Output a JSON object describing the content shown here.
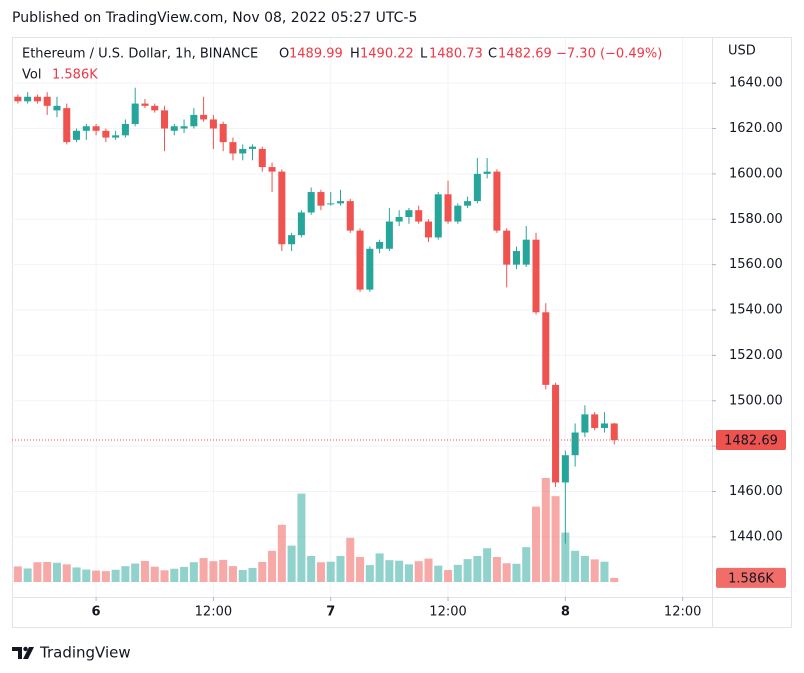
{
  "published": "Published on TradingView.com, Nov 08, 2022 05:27 UTC-5",
  "footer": {
    "brand": "TradingView"
  },
  "chart_data": {
    "type": "candlestick",
    "title": "Ethereum / U.S. Dollar, 1h, BINANCE",
    "ohlc_labels": [
      "O",
      "H",
      "L",
      "C"
    ],
    "change": "−7.30 (−0.49%)",
    "volume_title": "Vol",
    "volume_label": "1.586K",
    "currency_label": "USD",
    "up_color": "#26a69a",
    "down_color": "#ef5350",
    "x": [
      -8,
      -7,
      -6,
      -5,
      -4,
      -3,
      -2,
      -1,
      0,
      1,
      2,
      3,
      4,
      5,
      6,
      7,
      8,
      9,
      10,
      11,
      12,
      13,
      14,
      15,
      16,
      17,
      18,
      19,
      20,
      21,
      22,
      23,
      24,
      25,
      26,
      27,
      28,
      29,
      30,
      31,
      32,
      33,
      34,
      35,
      36,
      37,
      38,
      39,
      40,
      41,
      42,
      43,
      44,
      45,
      46,
      47,
      48,
      49,
      50,
      51,
      52,
      53
    ],
    "open": [
      1634,
      1632,
      1634,
      1634,
      1628,
      1629,
      1615,
      1619,
      1621,
      1619,
      1616,
      1617,
      1622,
      1631,
      1630,
      1628,
      1619,
      1620,
      1621,
      1626,
      1624,
      1622,
      1614,
      1609,
      1611,
      1611,
      1603,
      1601,
      1569,
      1573,
      1583,
      1592,
      1587,
      1587,
      1588,
      1575,
      1549,
      1567,
      1567,
      1579,
      1581,
      1584,
      1579,
      1572,
      1591,
      1579,
      1586,
      1588,
      1600,
      1601,
      1575,
      1560,
      1560,
      1571,
      1539,
      1507,
      1464,
      1476,
      1486,
      1494,
      1488,
      1489.99
    ],
    "high": [
      1635,
      1636,
      1635,
      1636,
      1634,
      1631,
      1620,
      1622,
      1622,
      1620,
      1619,
      1624,
      1638,
      1633,
      1631,
      1630,
      1622,
      1624,
      1629,
      1634,
      1626,
      1623,
      1616,
      1613,
      1613,
      1612,
      1605,
      1602,
      1574,
      1584,
      1594,
      1593,
      1592,
      1593,
      1589,
      1576,
      1568,
      1571,
      1585,
      1584,
      1585,
      1586,
      1580,
      1592,
      1597,
      1587,
      1590,
      1607,
      1607,
      1602,
      1576,
      1568,
      1577,
      1574,
      1543,
      1508,
      1478,
      1490,
      1498,
      1495,
      1495,
      1490.22
    ],
    "low": [
      1631,
      1631,
      1631,
      1626,
      1625,
      1613,
      1614,
      1615,
      1617,
      1614,
      1615,
      1616,
      1621,
      1629,
      1627,
      1610,
      1617,
      1618,
      1620,
      1623,
      1611,
      1610,
      1606,
      1606,
      1606,
      1601,
      1592,
      1566,
      1566,
      1572,
      1582,
      1584,
      1586,
      1586,
      1574,
      1548,
      1548,
      1565,
      1566,
      1577,
      1578,
      1578,
      1570,
      1571,
      1578,
      1578,
      1585,
      1587,
      1598,
      1574,
      1550,
      1558,
      1559,
      1538,
      1505,
      1462,
      1437,
      1471,
      1484,
      1487,
      1486,
      1480.73
    ],
    "close": [
      1632,
      1634,
      1632,
      1630,
      1630,
      1614,
      1619,
      1621,
      1619,
      1616,
      1617,
      1622,
      1631,
      1630,
      1628,
      1620,
      1621,
      1621,
      1626,
      1624,
      1620,
      1614,
      1609,
      1611,
      1612,
      1603,
      1601,
      1569,
      1573,
      1583,
      1592,
      1586,
      1587,
      1588,
      1575,
      1549,
      1567,
      1570,
      1579,
      1581,
      1584,
      1579,
      1572,
      1591,
      1579,
      1586,
      1588,
      1600,
      1601,
      1575,
      1560,
      1566,
      1571,
      1539,
      1507,
      1464,
      1476,
      1486,
      1494,
      1488,
      1490,
      1482.69
    ],
    "volume": [
      6000,
      5200,
      7600,
      7700,
      7400,
      6800,
      5600,
      4800,
      4400,
      4200,
      4700,
      6100,
      7100,
      8100,
      5900,
      4500,
      5100,
      5800,
      7600,
      9200,
      8000,
      8500,
      6100,
      4600,
      5400,
      7700,
      12000,
      22000,
      14000,
      34000,
      10000,
      7600,
      7800,
      10000,
      17000,
      9600,
      6500,
      11000,
      8400,
      8200,
      6800,
      8000,
      9000,
      6300,
      4600,
      6600,
      8800,
      10000,
      13000,
      9600,
      7200,
      7000,
      13400,
      29000,
      40000,
      33000,
      19000,
      12000,
      10000,
      8700,
      7800,
      1586
    ],
    "vlim": [
      0,
      80000
    ],
    "xlim": [
      -8.6,
      63
    ],
    "xticks": [
      {
        "value": 0,
        "label": "6"
      },
      {
        "value": 12,
        "label": "12:00"
      },
      {
        "value": 24,
        "label": "7"
      },
      {
        "value": 36,
        "label": "12:00"
      },
      {
        "value": 48,
        "label": "8"
      },
      {
        "value": 60,
        "label": "12:00"
      }
    ],
    "ylim": [
      1413.5,
      1659.9
    ],
    "yticks": [
      {
        "value": 1440,
        "label": "1440.00"
      },
      {
        "value": 1460,
        "label": "1460.00"
      },
      {
        "value": 1480,
        "label": "1480.00"
      },
      {
        "value": 1500,
        "label": "1500.00"
      },
      {
        "value": 1520,
        "label": "1520.00"
      },
      {
        "value": 1540,
        "label": "1540.00"
      },
      {
        "value": 1560,
        "label": "1560.00"
      },
      {
        "value": 1580,
        "label": "1580.00"
      },
      {
        "value": 1600,
        "label": "1600.00"
      },
      {
        "value": 1620,
        "label": "1620.00"
      },
      {
        "value": 1640,
        "label": "1640.00"
      }
    ],
    "grid": true
  }
}
